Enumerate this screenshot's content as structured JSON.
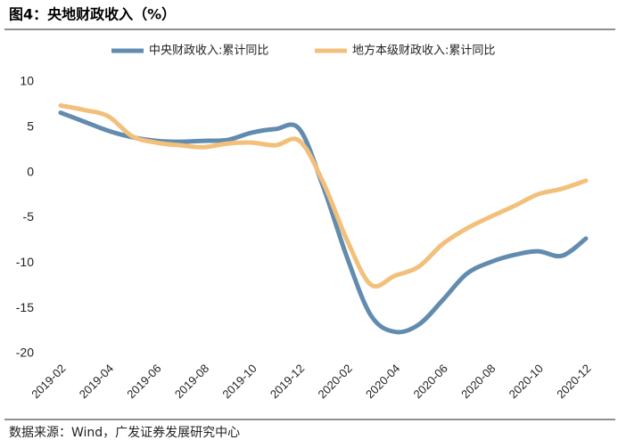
{
  "chart_data": {
    "type": "line",
    "title": "图4：央地财政收入（%）",
    "source": "数据来源：Wind，广发证券发展研究中心",
    "categories": [
      "2019-02",
      null,
      "2019-04",
      null,
      "2019-06",
      null,
      "2019-08",
      null,
      "2019-10",
      null,
      "2019-12",
      null,
      "2020-02",
      null,
      "2020-04",
      null,
      "2020-06",
      null,
      "2020-08",
      null,
      "2020-10",
      null,
      "2020-12"
    ],
    "series": [
      {
        "name": "中央财政收入:累计同比",
        "color": "#628bb0",
        "values": [
          6.6,
          5.6,
          4.6,
          3.9,
          3.5,
          3.4,
          3.5,
          3.6,
          4.4,
          4.8,
          4.8,
          -1.6,
          -9.4,
          -15.8,
          -17.6,
          -16.8,
          -14.1,
          -11.2,
          -9.9,
          -9.1,
          -8.7,
          -9.2,
          -7.3
        ]
      },
      {
        "name": "地方本级财政收入:累计同比",
        "color": "#f2c07b",
        "values": [
          7.4,
          6.9,
          6.2,
          4.0,
          3.3,
          3.0,
          2.8,
          3.2,
          3.3,
          3.0,
          3.5,
          -1.1,
          -7.5,
          -12.4,
          -11.4,
          -10.4,
          -7.9,
          -6.2,
          -4.9,
          -3.7,
          -2.4,
          -1.8,
          -0.9
        ]
      }
    ],
    "ylim": [
      -20,
      10
    ],
    "yticks": [
      10,
      5,
      0,
      -5,
      -10,
      -15,
      -20
    ],
    "legend": "top",
    "grid": false
  }
}
